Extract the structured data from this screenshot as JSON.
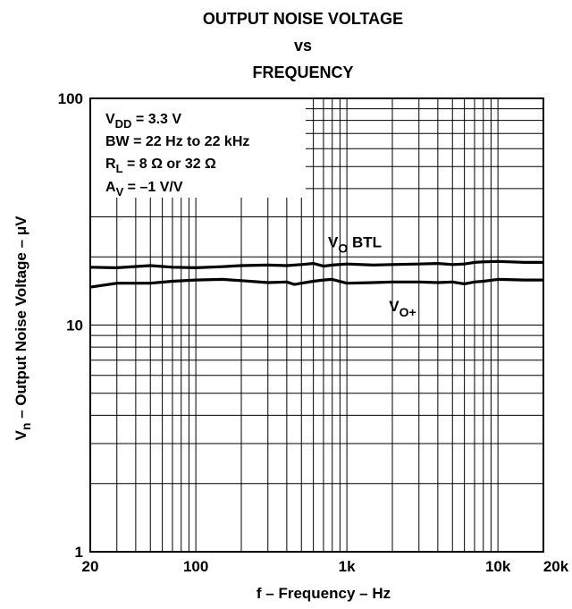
{
  "chart_data": {
    "type": "line",
    "title_lines": [
      "OUTPUT NOISE VOLTAGE",
      "vs",
      "FREQUENCY"
    ],
    "xlabel": "f – Frequency – Hz",
    "ylabel": {
      "pre": "V",
      "sub": "n",
      "post": "  – Output Noise Voltage – μV"
    },
    "x_scale": "log",
    "y_scale": "log",
    "xlim": [
      20,
      20000
    ],
    "ylim": [
      1,
      100
    ],
    "grid": true,
    "x_tick_labels": [
      {
        "value": 20,
        "label": "20"
      },
      {
        "value": 100,
        "label": "100"
      },
      {
        "value": 1000,
        "label": "1k"
      },
      {
        "value": 10000,
        "label": "10k"
      },
      {
        "value": 20000,
        "label": "20k"
      }
    ],
    "y_tick_labels": [
      {
        "value": 1,
        "label": "1"
      },
      {
        "value": 10,
        "label": "10"
      },
      {
        "value": 100,
        "label": "100"
      }
    ],
    "conditions": [
      {
        "pre": "V",
        "sub": "DD",
        "post": " = 3.3 V"
      },
      {
        "pre": "BW = 22 Hz to 22 kHz",
        "sub": "",
        "post": ""
      },
      {
        "pre": "R",
        "sub": "L",
        "post": " = 8 Ω or 32 Ω"
      },
      {
        "pre": "A",
        "sub": "V",
        "post": " = –1 V/V"
      }
    ],
    "series": [
      {
        "label_parts": {
          "pre": "V",
          "sub": "O",
          "post": " BTL"
        },
        "label_at": {
          "x": 750,
          "y": 22
        },
        "x": [
          20,
          30,
          50,
          70,
          100,
          150,
          200,
          300,
          400,
          500,
          600,
          700,
          800,
          1000,
          1500,
          2000,
          3000,
          4000,
          5000,
          6000,
          7000,
          8000,
          10000,
          12000,
          15000,
          20000
        ],
        "y": [
          18.0,
          17.9,
          18.3,
          18.0,
          17.9,
          18.1,
          18.3,
          18.4,
          18.3,
          18.5,
          18.7,
          18.2,
          18.4,
          18.6,
          18.4,
          18.5,
          18.6,
          18.7,
          18.5,
          18.6,
          18.9,
          19.0,
          19.1,
          19.0,
          18.9,
          18.9
        ]
      },
      {
        "label_parts": {
          "pre": "V",
          "sub": "O+",
          "post": ""
        },
        "label_at": {
          "x": 1900,
          "y": 11.5
        },
        "x": [
          20,
          30,
          50,
          70,
          100,
          150,
          200,
          300,
          400,
          450,
          500,
          600,
          700,
          800,
          1000,
          1500,
          2000,
          3000,
          4000,
          5000,
          6000,
          7000,
          8000,
          10000,
          15000,
          20000
        ],
        "y": [
          14.7,
          15.3,
          15.3,
          15.6,
          15.8,
          15.9,
          15.7,
          15.4,
          15.5,
          15.1,
          15.3,
          15.6,
          15.8,
          15.9,
          15.3,
          15.4,
          15.5,
          15.5,
          15.4,
          15.5,
          15.2,
          15.5,
          15.6,
          15.9,
          15.8,
          15.8
        ]
      }
    ]
  }
}
